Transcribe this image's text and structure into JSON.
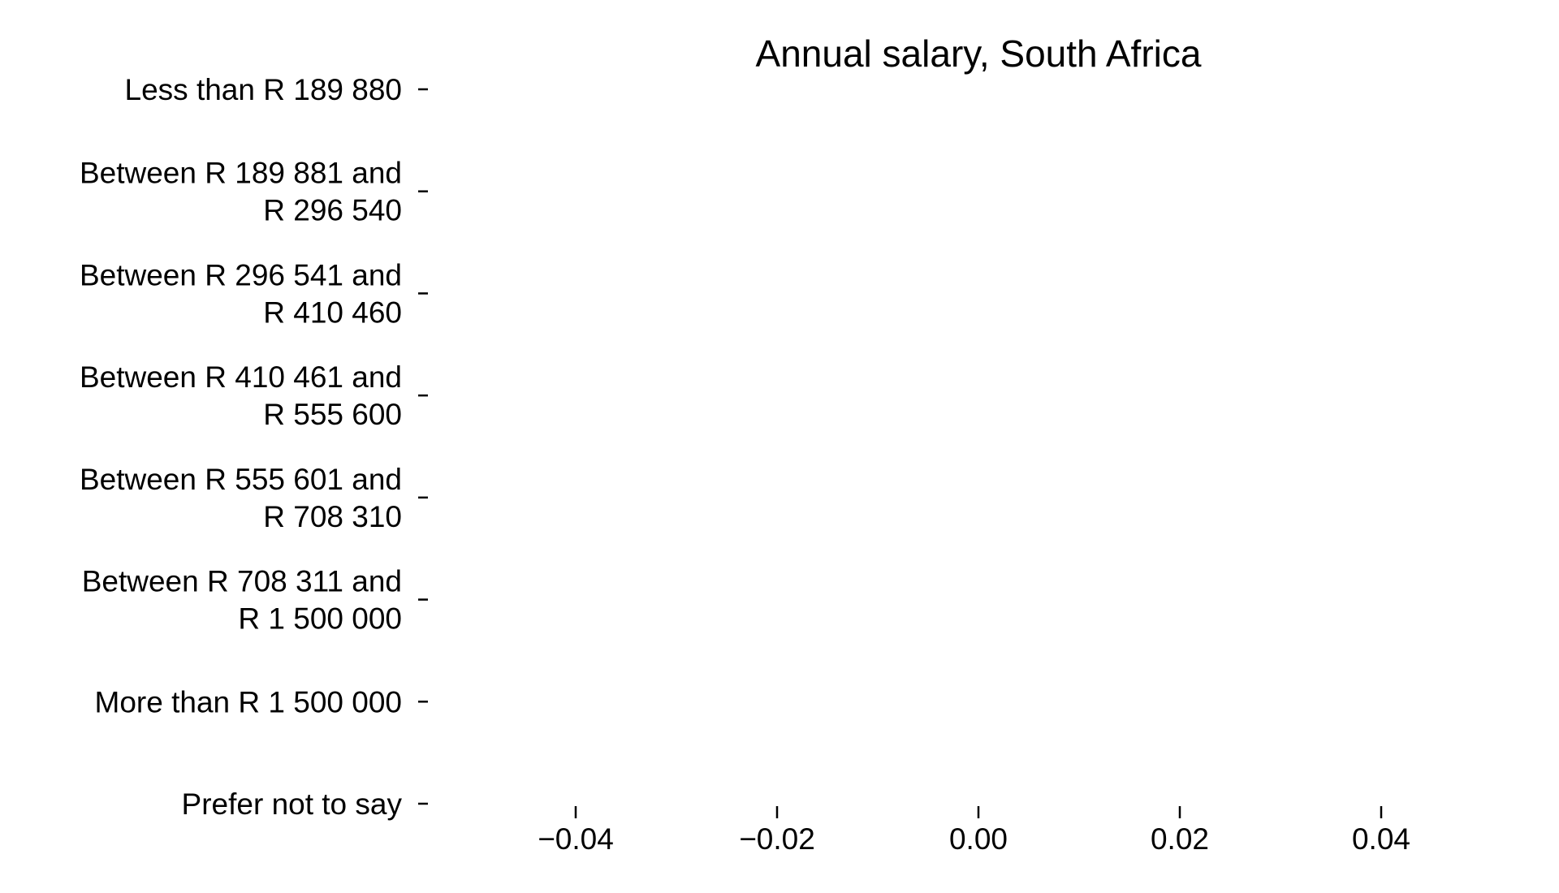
{
  "chart_data": {
    "type": "bar",
    "orientation": "horizontal",
    "title": "Annual salary, South Africa",
    "xlabel": "",
    "ylabel": "",
    "categories": [
      [
        "Less than R 189 880"
      ],
      [
        "Between R 189 881 and",
        "R 296 540"
      ],
      [
        "Between R 296 541 and",
        "R 410 460"
      ],
      [
        "Between R 410 461 and",
        "R 555 600"
      ],
      [
        "Between R 555 601 and",
        "R 708 310"
      ],
      [
        "Between R 708 311 and",
        "R 1 500 000"
      ],
      [
        "More than R 1 500 000"
      ],
      [
        "Prefer not to say"
      ]
    ],
    "values": [
      0,
      0,
      0,
      0,
      0,
      0,
      0,
      0
    ],
    "x_ticks": [
      -0.04,
      -0.02,
      0.0,
      0.02,
      0.04
    ],
    "x_tick_labels": [
      "−0.04",
      "−0.02",
      "0.00",
      "0.02",
      "0.04"
    ],
    "xlim": [
      -0.05,
      0.05
    ],
    "grid": false,
    "legend": "none",
    "colors": {
      "text": "#000000",
      "ticks": "#000000",
      "background": "#ffffff"
    }
  }
}
